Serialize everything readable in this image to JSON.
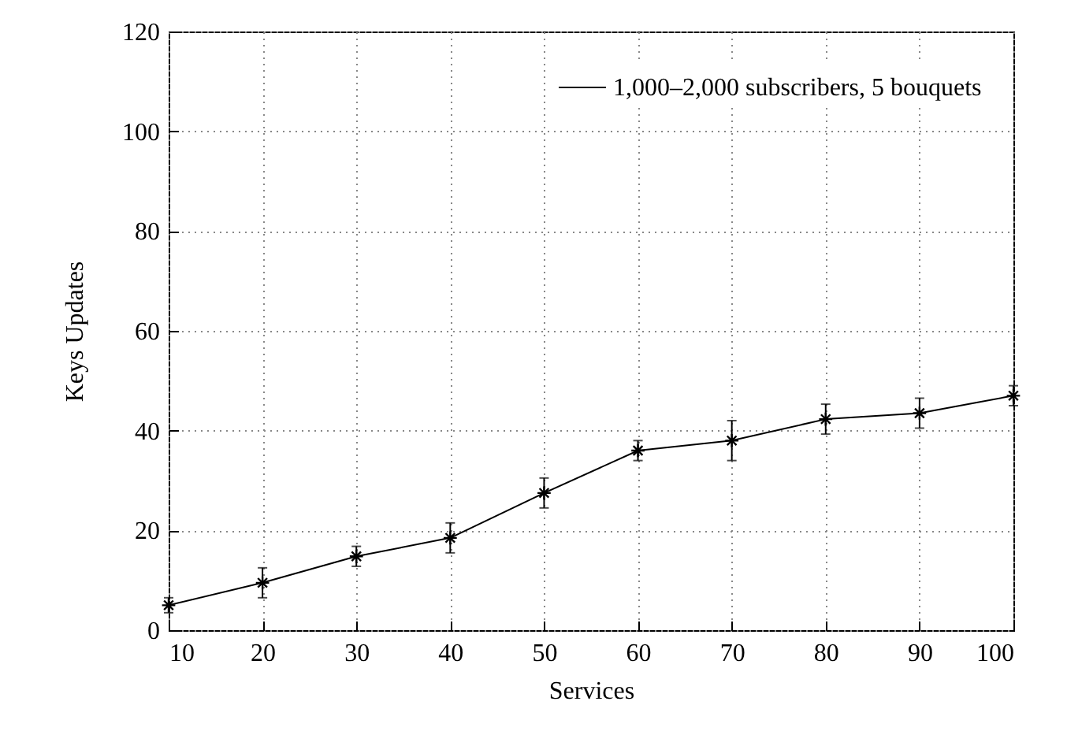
{
  "chart_data": {
    "type": "line",
    "xlabel": "Services",
    "ylabel": "Keys Updates",
    "x": [
      10,
      20,
      30,
      40,
      50,
      60,
      70,
      80,
      90,
      100
    ],
    "series": [
      {
        "name": "1,000–2,000 subscribers, 5 bouquets",
        "color": "#000000",
        "values": [
          5,
          9.5,
          14.8,
          18.5,
          27.5,
          36,
          38,
          42.3,
          43.5,
          47
        ],
        "errors": [
          1.5,
          3,
          2,
          3,
          3,
          2,
          4,
          3,
          3,
          2
        ]
      }
    ],
    "xlim": [
      10,
      100
    ],
    "xticks": [
      10,
      20,
      30,
      40,
      50,
      60,
      70,
      80,
      90,
      100
    ],
    "ylim": [
      0,
      120
    ],
    "yticks": [
      0,
      20,
      40,
      60,
      80,
      100,
      120
    ],
    "grid": true,
    "legend": "top right",
    "marker": "cross",
    "line_style": "solid"
  }
}
